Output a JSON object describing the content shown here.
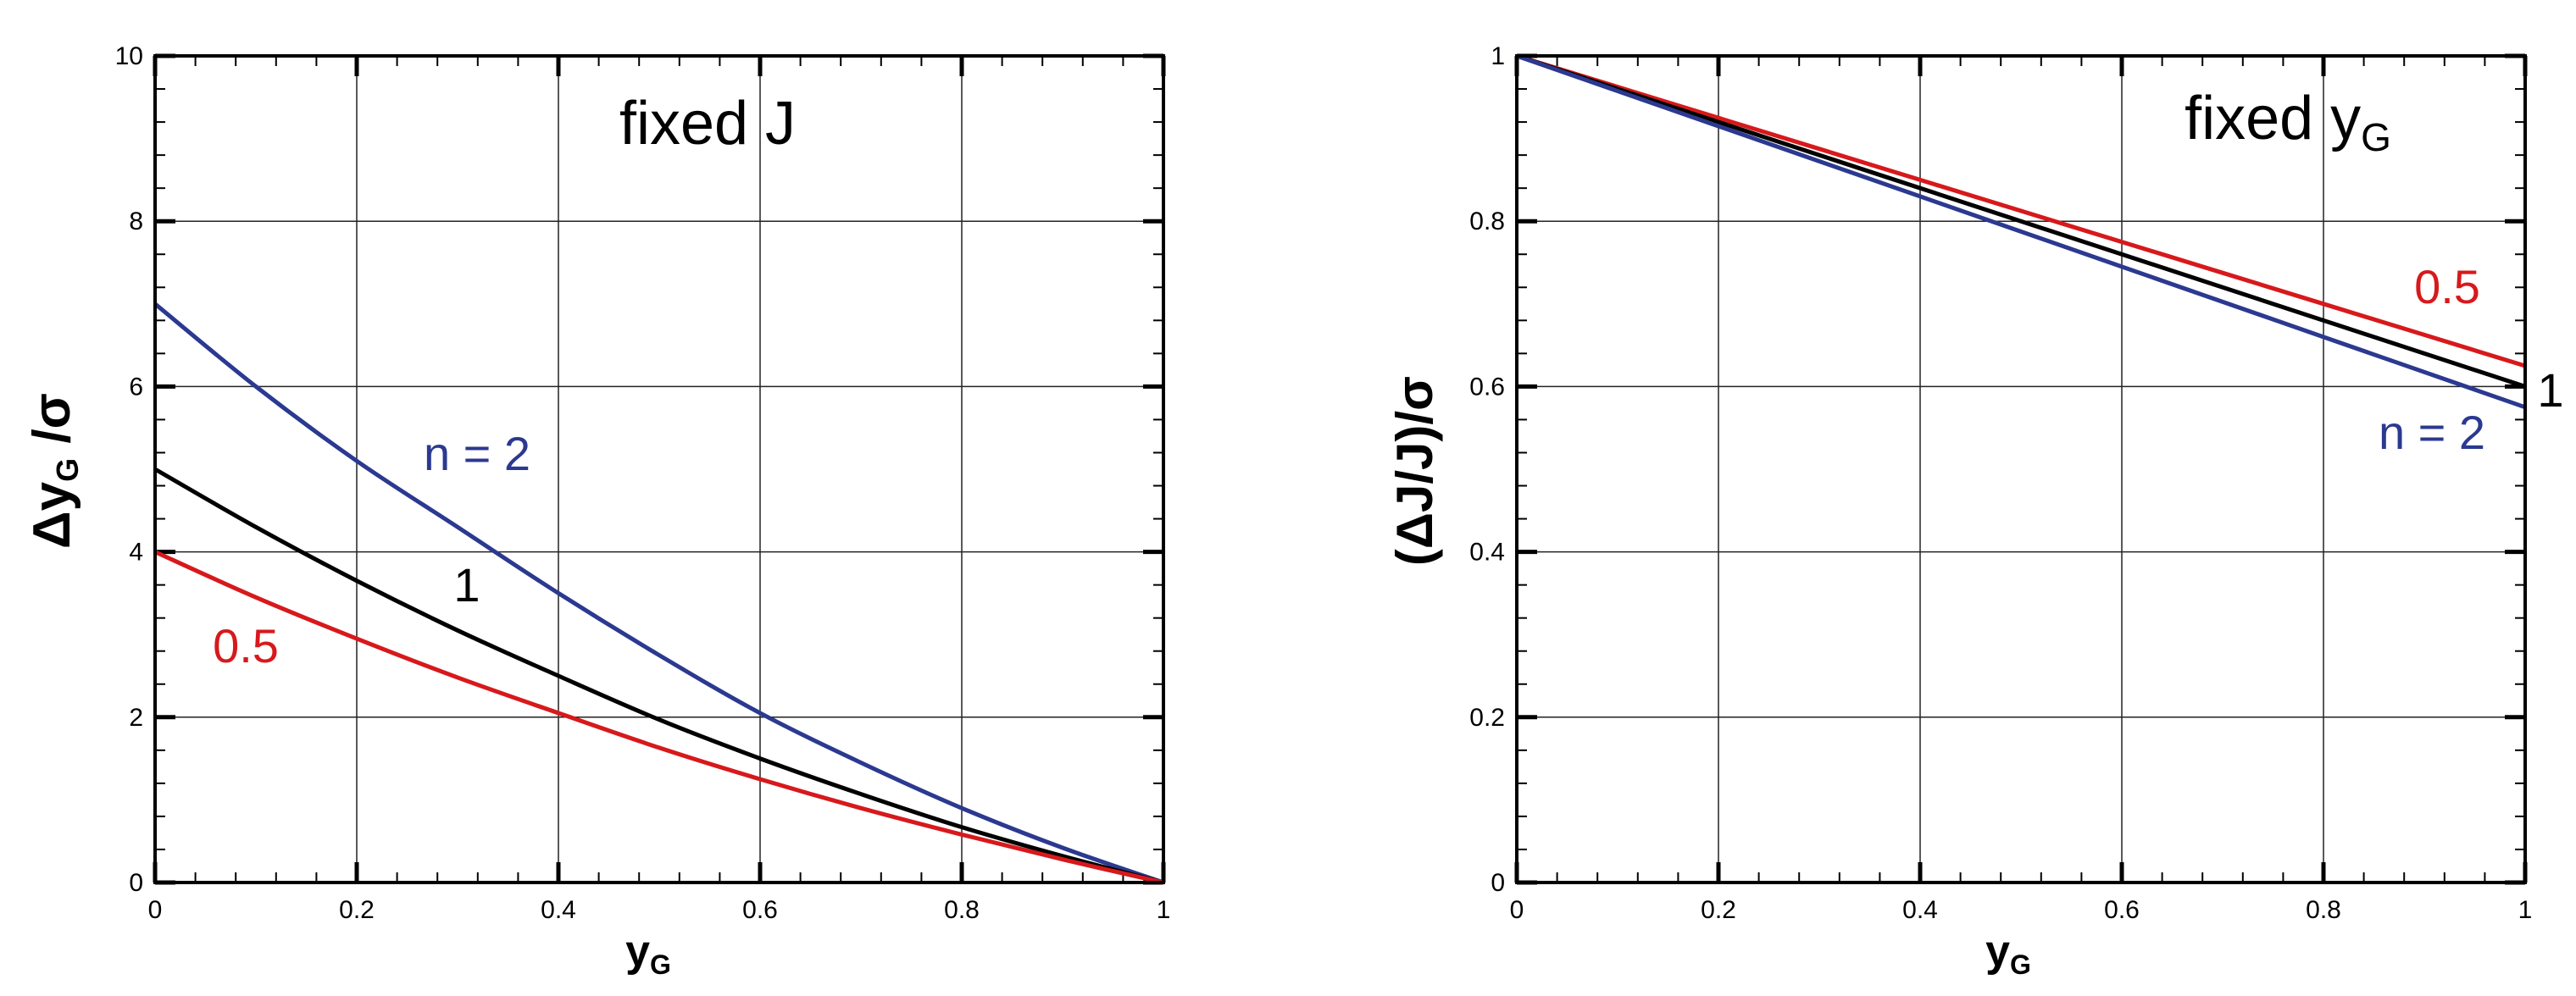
{
  "chart_data": [
    {
      "type": "line",
      "annotation": "fixed J",
      "xlabel": "y",
      "xlabel_sub": "G",
      "ylabel_prefix": "Δy",
      "ylabel_sub": "G",
      "ylabel_suffix": " /σ",
      "xlim": [
        0,
        1
      ],
      "ylim": [
        0,
        10
      ],
      "xticks": [
        0,
        0.2,
        0.4,
        0.6,
        0.8,
        1
      ],
      "xtick_labels": [
        "0",
        "0.2",
        "0.4",
        "0.6",
        "0.8",
        "1"
      ],
      "yticks": [
        0,
        2,
        4,
        6,
        8,
        10
      ],
      "ytick_labels": [
        "0",
        "2",
        "4",
        "6",
        "8",
        "10"
      ],
      "grid": true,
      "x": [
        0,
        0.1,
        0.2,
        0.3,
        0.4,
        0.5,
        0.6,
        0.7,
        0.8,
        0.9,
        1
      ],
      "series": [
        {
          "name": "n = 2",
          "color": "#2b3990",
          "values": [
            7.0,
            6.0,
            5.1,
            4.3,
            3.5,
            2.75,
            2.05,
            1.45,
            0.9,
            0.42,
            0
          ]
        },
        {
          "name": "1",
          "color": "#000000",
          "values": [
            5.0,
            4.3,
            3.65,
            3.05,
            2.5,
            1.97,
            1.5,
            1.07,
            0.67,
            0.32,
            0
          ]
        },
        {
          "name": "0.5",
          "color": "#d7191c",
          "values": [
            4.0,
            3.45,
            2.95,
            2.48,
            2.05,
            1.63,
            1.25,
            0.9,
            0.58,
            0.28,
            0
          ]
        }
      ]
    },
    {
      "type": "line",
      "annotation": "fixed y",
      "annotation_sub": "G",
      "xlabel": "y",
      "xlabel_sub": "G",
      "ylabel": "(ΔJ/J)/σ",
      "xlim": [
        0,
        1
      ],
      "ylim": [
        0,
        1
      ],
      "xticks": [
        0,
        0.2,
        0.4,
        0.6,
        0.8,
        1
      ],
      "xtick_labels": [
        "0",
        "0.2",
        "0.4",
        "0.6",
        "0.8",
        "1"
      ],
      "yticks": [
        0,
        0.2,
        0.4,
        0.6,
        0.8,
        1
      ],
      "ytick_labels": [
        "0",
        "0.2",
        "0.4",
        "0.6",
        "0.8",
        "1"
      ],
      "grid": true,
      "x": [
        0,
        0.2,
        0.4,
        0.6,
        0.8,
        1
      ],
      "series": [
        {
          "name": "0.5",
          "color": "#d7191c",
          "values": [
            1.0,
            0.925,
            0.85,
            0.775,
            0.7,
            0.625
          ]
        },
        {
          "name": "1",
          "color": "#000000",
          "values": [
            1.0,
            0.92,
            0.84,
            0.76,
            0.68,
            0.6
          ]
        },
        {
          "name": "n = 2",
          "color": "#2b3990",
          "values": [
            1.0,
            0.915,
            0.83,
            0.745,
            0.66,
            0.575
          ]
        }
      ]
    }
  ]
}
